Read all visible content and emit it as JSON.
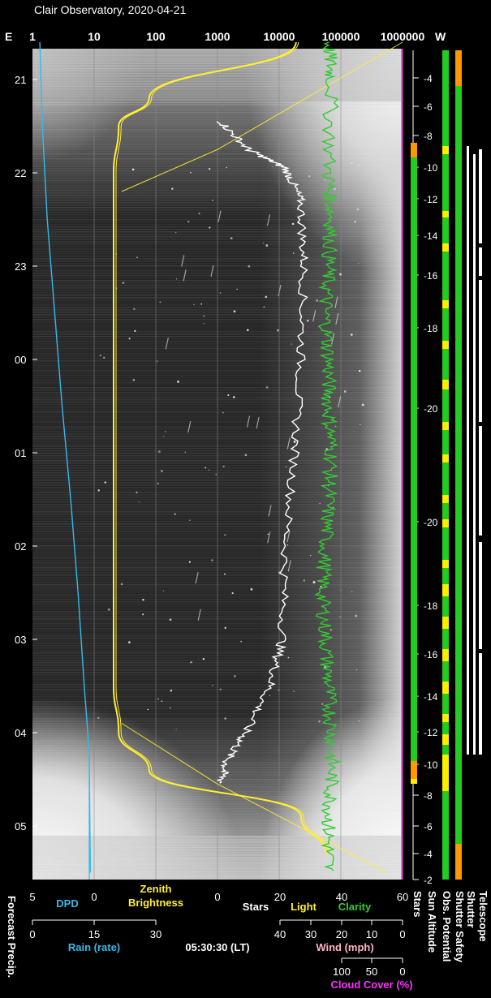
{
  "title": "Clair Observatory, 2020-04-21",
  "colors": {
    "text": "#ffffff",
    "dpd": "#33bbee",
    "zenith": "#ffee33",
    "stars": "#ffffff",
    "light": "#ffee33",
    "clarity": "#33cc33",
    "wind": "#ffb6c1",
    "cloud": "#ff33ff",
    "green": "#22cc22",
    "yellow": "#ffee00",
    "orange": "#ff9900"
  },
  "top_axis": {
    "e_label": "E",
    "w_label": "W",
    "ticks": [
      "1",
      "10",
      "100",
      "1000",
      "10000",
      "100000",
      "1000000"
    ]
  },
  "hour_ticks": [
    "21",
    "22",
    "23",
    "00",
    "01",
    "02",
    "03",
    "04",
    "05"
  ],
  "sun_altitude_ticks": [
    "-4",
    "-6",
    "-8",
    "-10",
    "-12",
    "-14",
    "-16",
    "-18",
    "-20",
    "-20",
    "-18",
    "-16",
    "-14",
    "-12",
    "-10",
    "-8",
    "-6",
    "-4",
    "-2"
  ],
  "bottom": {
    "row1_ticks": [
      "5",
      "0",
      "0",
      "20",
      "40",
      "60"
    ],
    "dpd_label": "DPD",
    "zenith_label": "Zenith\nBrightness",
    "stars_label": "Stars",
    "light_label": "Light",
    "clarity_label": "Clarity",
    "rain_ticks": [
      "0",
      "15",
      "30"
    ],
    "rain_label": "Rain (rate)",
    "time_label": "05:30:30 (LT)",
    "wind_ticks": [
      "40",
      "30",
      "20",
      "10",
      "0"
    ],
    "wind_label": "Wind (mph)",
    "cloud_ticks": [
      "100",
      "50",
      "0"
    ],
    "cloud_label": "Cloud Cover (%)",
    "forecast_label": "Forecast Precip.",
    "right_labels": [
      "Stars",
      "Sun Altitude",
      "Obs. Potential",
      "Shutter Safety",
      "Shutter",
      "Telescope"
    ]
  },
  "chart_data": {
    "type": "line",
    "title": "Clair Observatory, 2020-04-21",
    "x_scales": {
      "top_log": [
        1,
        1000000
      ],
      "stars_light_clarity": [
        0,
        60
      ],
      "dpd": [
        5,
        0
      ],
      "zenith_brightness": [
        0,
        60
      ],
      "rain_rate": [
        0,
        30
      ],
      "wind_mph": [
        40,
        0
      ],
      "cloud_cover_pct": [
        100,
        0
      ]
    },
    "y_time_hours": [
      "21",
      "22",
      "23",
      "00",
      "01",
      "02",
      "03",
      "04",
      "05"
    ],
    "series": [
      {
        "name": "Zenith Brightness",
        "points": [
          [
            39,
            20.6
          ],
          [
            10,
            21.2
          ],
          [
            4,
            21.5
          ],
          [
            3,
            22.0
          ],
          [
            3,
            22.5
          ],
          [
            3,
            23.0
          ],
          [
            3,
            24.0
          ],
          [
            3,
            25.0
          ],
          [
            3,
            26.0
          ],
          [
            3,
            27.0
          ],
          [
            3,
            27.5
          ],
          [
            4,
            28.0
          ],
          [
            10,
            28.4
          ],
          [
            40,
            28.9
          ],
          [
            45,
            29.3
          ]
        ]
      },
      {
        "name": "Stars",
        "points": [
          [
            1,
            21.45
          ],
          [
            10,
            21.75
          ],
          [
            22,
            21.95
          ],
          [
            27,
            22.3
          ],
          [
            28,
            23.0
          ],
          [
            27,
            24.0
          ],
          [
            25,
            25.0
          ],
          [
            22,
            26.0
          ],
          [
            21,
            27.0
          ],
          [
            17,
            27.5
          ],
          [
            9,
            28.0
          ],
          [
            3,
            28.3
          ],
          [
            1,
            28.55
          ]
        ]
      },
      {
        "name": "Clarity",
        "points": [
          [
            36,
            20.6
          ],
          [
            37,
            21.0
          ],
          [
            36,
            22.0
          ],
          [
            37,
            22.5
          ],
          [
            36,
            23.0
          ],
          [
            35,
            23.5
          ],
          [
            36,
            24.0
          ],
          [
            36,
            24.5
          ],
          [
            37,
            25.0
          ],
          [
            36,
            25.5
          ],
          [
            35,
            26.0
          ],
          [
            34,
            26.5
          ],
          [
            35,
            27.0
          ],
          [
            36,
            27.5
          ],
          [
            37,
            28.0
          ],
          [
            37,
            28.5
          ],
          [
            36,
            29.0
          ],
          [
            36,
            29.5
          ]
        ]
      },
      {
        "name": "DPD",
        "points": [
          [
            4.4,
            20.6
          ],
          [
            4.2,
            21.5
          ],
          [
            3.8,
            22.5
          ],
          [
            3.2,
            23.5
          ],
          [
            2.6,
            24.5
          ],
          [
            1.9,
            25.5
          ],
          [
            1.3,
            26.5
          ],
          [
            0.8,
            27.5
          ],
          [
            0.4,
            28.2
          ],
          [
            0.3,
            29.5
          ]
        ]
      },
      {
        "name": "Cloud Cover (%)",
        "points": [
          [
            1,
            20.6
          ],
          [
            1,
            29.5
          ]
        ]
      }
    ],
    "right_bars": {
      "obs_potential": "green with yellow segments",
      "shutter_safety": "green, orange at ends",
      "shutter": "white segments",
      "telescope": "white segments"
    }
  }
}
